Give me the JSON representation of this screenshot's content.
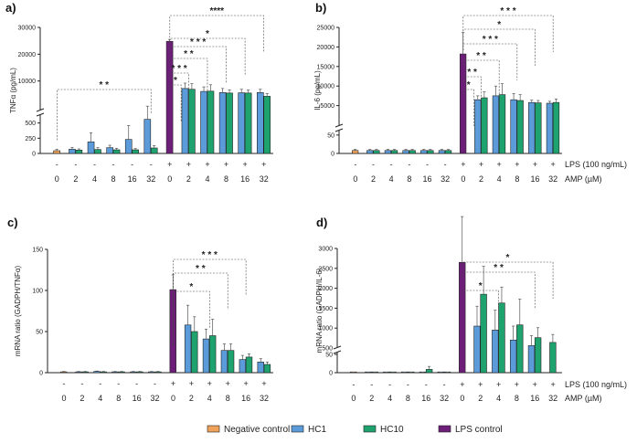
{
  "legend": [
    {
      "name": "Negative control",
      "color": "#f0a25a"
    },
    {
      "name": "HC1",
      "color": "#5b9bd9"
    },
    {
      "name": "HC10",
      "color": "#1ea36f"
    },
    {
      "name": "LPS control",
      "color": "#6d1e78"
    }
  ],
  "conditions": {
    "lps_label": "LPS (100 ng/mL)",
    "amp_label": "AMP (µM)",
    "lps_marks": [
      "-",
      "-",
      "-",
      "-",
      "-",
      "-",
      "+",
      "+",
      "+",
      "+",
      "+",
      "+"
    ],
    "amp_values": [
      "0",
      "2",
      "4",
      "8",
      "16",
      "32",
      "0",
      "2",
      "4",
      "8",
      "16",
      "32"
    ]
  },
  "chart_data": [
    {
      "panel": "a)",
      "type": "bar",
      "ylabel": "TNFα (pg/mL)",
      "y_ticks_upper": [
        "30000",
        "20000",
        "10000"
      ],
      "y_ticks_lower": [
        "500",
        "250",
        "0"
      ],
      "categories": [
        "0",
        "2",
        "4",
        "8",
        "16",
        "32",
        "0",
        "2",
        "4",
        "8",
        "16",
        "32"
      ],
      "series": [
        {
          "name": "Negative control",
          "values": [
            45,
            null,
            null,
            null,
            null,
            null,
            null,
            null,
            null,
            null,
            null,
            null
          ],
          "errors": [
            25,
            null,
            null,
            null,
            null,
            null,
            null,
            null,
            null,
            null,
            null,
            null
          ]
        },
        {
          "name": "HC1",
          "values": [
            null,
            70,
            190,
            95,
            230,
            560,
            null,
            7200,
            6100,
            5700,
            5600,
            5700
          ],
          "errors": [
            null,
            30,
            150,
            40,
            230,
            50,
            null,
            2000,
            1700,
            1500,
            1300,
            1200
          ]
        },
        {
          "name": "HC10",
          "values": [
            null,
            55,
            65,
            60,
            60,
            90,
            null,
            6900,
            6200,
            5500,
            5500,
            4300
          ],
          "errors": [
            null,
            20,
            30,
            25,
            20,
            40,
            null,
            2100,
            2400,
            1200,
            1100,
            1000
          ]
        },
        {
          "name": "LPS control",
          "values": [
            null,
            null,
            null,
            null,
            null,
            null,
            24800,
            null,
            null,
            null,
            null,
            null
          ],
          "errors": [
            null,
            null,
            null,
            null,
            null,
            null,
            700,
            null,
            null,
            null,
            null,
            null
          ]
        }
      ],
      "significance": [
        "* *",
        "****",
        "*",
        "* * *",
        "* *",
        "* * *",
        "*"
      ]
    },
    {
      "panel": "b)",
      "type": "bar",
      "ylabel": "IL-6 (pg/mL)",
      "y_ticks_upper": [
        "25000",
        "20000",
        "15000",
        "10000",
        "5000"
      ],
      "y_ticks_lower": [
        "50",
        "0"
      ],
      "categories": [
        "0",
        "2",
        "4",
        "8",
        "16",
        "32",
        "0",
        "2",
        "4",
        "8",
        "16",
        "32"
      ],
      "series": [
        {
          "name": "Negative control",
          "values": [
            8,
            null,
            null,
            null,
            null,
            null,
            null,
            null,
            null,
            null,
            null,
            null
          ],
          "errors": [
            3,
            null,
            null,
            null,
            null,
            null,
            null,
            null,
            null,
            null,
            null,
            null
          ]
        },
        {
          "name": "HC1",
          "values": [
            null,
            8,
            8,
            8,
            8,
            8,
            null,
            6500,
            7500,
            6500,
            5800,
            5600
          ],
          "errors": [
            null,
            3,
            3,
            3,
            3,
            3,
            null,
            1000,
            2500,
            1600,
            600,
            500
          ]
        },
        {
          "name": "HC10",
          "values": [
            null,
            8,
            8,
            8,
            8,
            8,
            null,
            7000,
            7800,
            6300,
            5700,
            5800
          ],
          "errors": [
            null,
            3,
            3,
            3,
            3,
            3,
            null,
            1500,
            2800,
            1500,
            600,
            900
          ]
        },
        {
          "name": "LPS control",
          "values": [
            null,
            null,
            null,
            null,
            null,
            null,
            18200,
            null,
            null,
            null,
            null,
            null
          ],
          "errors": [
            null,
            null,
            null,
            null,
            null,
            null,
            5500,
            null,
            null,
            null,
            null,
            null
          ]
        }
      ],
      "significance": [
        "* * *",
        "*",
        "* * *",
        "* *",
        "* *",
        "*"
      ]
    },
    {
      "panel": "c)",
      "type": "bar",
      "ylabel": "mRNA ratio (GADPH/TNFα)",
      "y_ticks": [
        "150",
        "100",
        "50",
        "0"
      ],
      "ylim": [
        0,
        150
      ],
      "categories": [
        "0",
        "2",
        "4",
        "8",
        "16",
        "32",
        "0",
        "2",
        "4",
        "8",
        "16",
        "32"
      ],
      "series": [
        {
          "name": "Negative control",
          "values": [
            1,
            null,
            null,
            null,
            null,
            null,
            null,
            null,
            null,
            null,
            null,
            null
          ],
          "errors": [
            0.5,
            null,
            null,
            null,
            null,
            null,
            null,
            null,
            null,
            null,
            null,
            null
          ]
        },
        {
          "name": "HC1",
          "values": [
            null,
            1,
            1.5,
            1,
            1,
            1,
            null,
            58,
            41,
            27,
            16,
            13
          ],
          "errors": [
            null,
            0.5,
            0.5,
            0.5,
            0.5,
            0.5,
            null,
            24,
            12,
            8,
            5,
            4
          ]
        },
        {
          "name": "HC10",
          "values": [
            null,
            1,
            1,
            1,
            1,
            1,
            null,
            50,
            45,
            27,
            19,
            10
          ],
          "errors": [
            null,
            0.5,
            0.5,
            0.5,
            0.5,
            0.5,
            null,
            18,
            20,
            8,
            4,
            3
          ]
        },
        {
          "name": "LPS control",
          "values": [
            null,
            null,
            null,
            null,
            null,
            null,
            101,
            null,
            null,
            null,
            null,
            null
          ],
          "errors": [
            null,
            null,
            null,
            null,
            null,
            null,
            18,
            null,
            null,
            null,
            null,
            null
          ]
        }
      ],
      "significance": [
        "* * *",
        "* *",
        "*"
      ]
    },
    {
      "panel": "d)",
      "type": "bar",
      "ylabel": "mRNA ratio (GADPH/IL-6)",
      "y_ticks_upper": [
        "3000",
        "2500",
        "2000",
        "1500",
        "1000",
        "500"
      ],
      "y_ticks_lower": [
        "50",
        "0"
      ],
      "categories": [
        "0",
        "2",
        "4",
        "8",
        "16",
        "32",
        "0",
        "2",
        "4",
        "8",
        "16",
        "32"
      ],
      "series": [
        {
          "name": "Negative control",
          "values": [
            1,
            null,
            null,
            null,
            null,
            null,
            null,
            null,
            null,
            null,
            null,
            null
          ],
          "errors": [
            0.5,
            null,
            null,
            null,
            null,
            null,
            null,
            null,
            null,
            null,
            null,
            null
          ]
        },
        {
          "name": "HC1",
          "values": [
            null,
            1,
            1,
            1,
            1,
            1,
            null,
            1050,
            950,
            700,
            560,
            null
          ],
          "errors": [
            null,
            0.5,
            0.5,
            0.5,
            0.5,
            0.5,
            null,
            500,
            500,
            350,
            250,
            null
          ]
        },
        {
          "name": "HC10",
          "values": [
            null,
            1,
            1,
            1,
            9,
            1,
            null,
            1850,
            1630,
            1080,
            760,
            640
          ],
          "errors": [
            null,
            0.5,
            0.5,
            0.5,
            8,
            0.5,
            null,
            700,
            400,
            650,
            250,
            200
          ]
        },
        {
          "name": "LPS control",
          "values": [
            null,
            null,
            null,
            null,
            null,
            null,
            2650,
            null,
            null,
            null,
            null,
            null
          ],
          "errors": [
            null,
            null,
            null,
            null,
            null,
            null,
            1150,
            null,
            null,
            null,
            null,
            null
          ]
        }
      ],
      "significance": [
        "*",
        "* *",
        "*"
      ]
    }
  ]
}
